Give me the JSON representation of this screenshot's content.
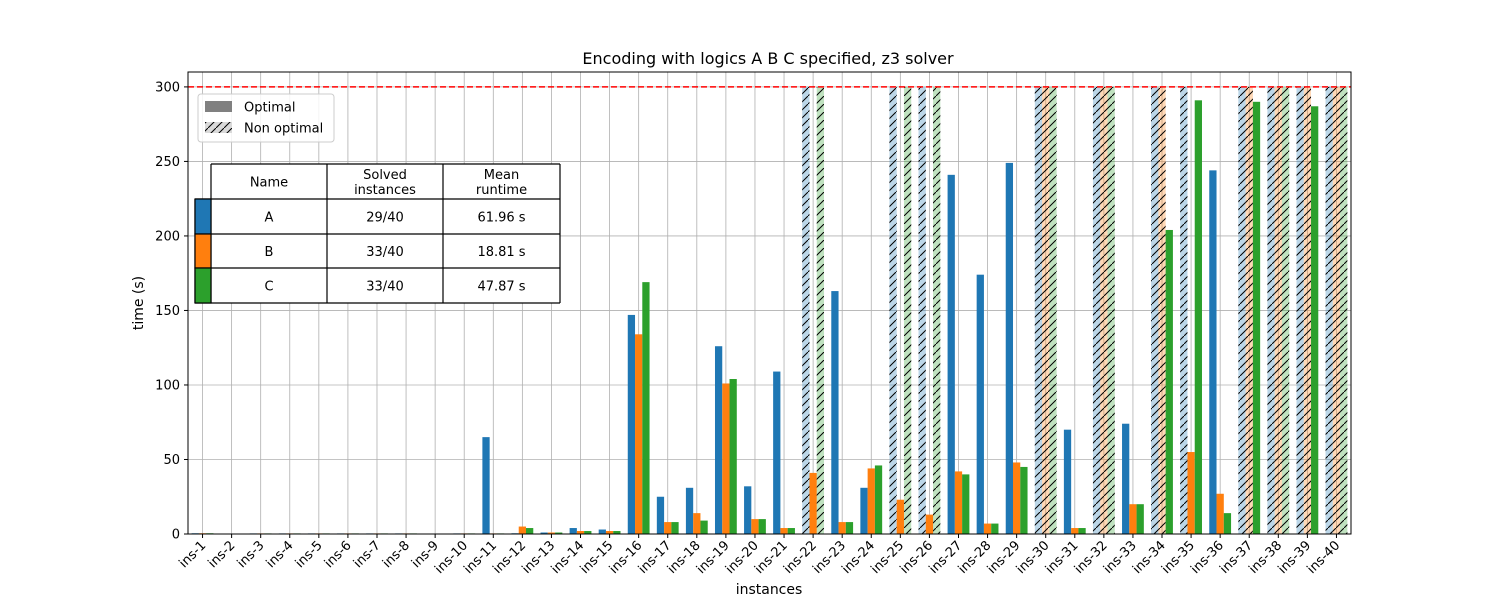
{
  "chart_data": {
    "type": "bar",
    "title": "Encoding with logics A B C specified, z3 solver",
    "xlabel": "instances",
    "ylabel": "time (s)",
    "ylim": [
      0,
      310
    ],
    "yticks": [
      0,
      50,
      100,
      150,
      200,
      250,
      300
    ],
    "timeout_line": 300,
    "timeout_color": "#ff0000",
    "grid": true,
    "categories": [
      "ins-1",
      "ins-2",
      "ins-3",
      "ins-4",
      "ins-5",
      "ins-6",
      "ins-7",
      "ins-8",
      "ins-9",
      "ins-10",
      "ins-11",
      "ins-12",
      "ins-13",
      "ins-14",
      "ins-15",
      "ins-16",
      "ins-17",
      "ins-18",
      "ins-19",
      "ins-20",
      "ins-21",
      "ins-22",
      "ins-23",
      "ins-24",
      "ins-25",
      "ins-26",
      "ins-27",
      "ins-28",
      "ins-29",
      "ins-30",
      "ins-31",
      "ins-32",
      "ins-33",
      "ins-34",
      "ins-35",
      "ins-36",
      "ins-37",
      "ins-38",
      "ins-39",
      "ins-40"
    ],
    "series": [
      {
        "name": "A",
        "color": "#1f77b4",
        "values": [
          0.5,
          0.3,
          0.4,
          0.4,
          0.4,
          0.4,
          0.4,
          0.4,
          0.3,
          0.4,
          65,
          0.5,
          1,
          4,
          3,
          147,
          25,
          31,
          126,
          32,
          109,
          300,
          163,
          31,
          300,
          300,
          241,
          174,
          249,
          300,
          70,
          300,
          74,
          300,
          300,
          244,
          300,
          300,
          300,
          300
        ],
        "optimal": [
          1,
          1,
          1,
          1,
          1,
          1,
          1,
          1,
          1,
          1,
          1,
          1,
          1,
          1,
          1,
          1,
          1,
          1,
          1,
          1,
          1,
          0,
          1,
          1,
          0,
          0,
          1,
          1,
          1,
          0,
          1,
          0,
          1,
          0,
          0,
          1,
          0,
          0,
          0,
          0
        ]
      },
      {
        "name": "B",
        "color": "#ff7f0e",
        "values": [
          0.5,
          0.3,
          0.4,
          0.4,
          0.4,
          0.4,
          0.4,
          0.4,
          0.3,
          0.4,
          0.4,
          5,
          1,
          2,
          2,
          134,
          8,
          14,
          101,
          10,
          4,
          41,
          8,
          44,
          23,
          13,
          42,
          7,
          48,
          300,
          4,
          300,
          20,
          300,
          55,
          27,
          300,
          300,
          300,
          300
        ],
        "optimal": [
          1,
          1,
          1,
          1,
          1,
          1,
          1,
          1,
          1,
          1,
          1,
          1,
          1,
          1,
          1,
          1,
          1,
          1,
          1,
          1,
          1,
          1,
          1,
          1,
          1,
          1,
          1,
          1,
          1,
          0,
          1,
          0,
          1,
          0,
          1,
          1,
          0,
          0,
          0,
          0
        ]
      },
      {
        "name": "C",
        "color": "#2ca02c",
        "values": [
          0.5,
          0.3,
          0.4,
          0.4,
          0.4,
          0.4,
          0.4,
          0.4,
          0.3,
          0.4,
          0.4,
          4,
          1,
          2,
          2,
          169,
          8,
          9,
          104,
          10,
          4,
          300,
          8,
          46,
          300,
          300,
          40,
          7,
          45,
          300,
          4,
          300,
          20,
          204,
          291,
          14,
          290,
          300,
          287,
          300
        ],
        "optimal": [
          1,
          1,
          1,
          1,
          1,
          1,
          1,
          1,
          1,
          1,
          1,
          1,
          1,
          1,
          1,
          1,
          1,
          1,
          1,
          1,
          1,
          0,
          1,
          1,
          0,
          0,
          1,
          1,
          1,
          0,
          1,
          0,
          1,
          1,
          1,
          1,
          1,
          0,
          1,
          0
        ]
      }
    ],
    "legend": {
      "placement": "top-left",
      "entries": [
        {
          "label": "Optimal",
          "style": "solid",
          "color": "#808080"
        },
        {
          "label": "Non optimal",
          "style": "hatched",
          "color": "#d9d9d9"
        }
      ]
    },
    "table": {
      "headers": [
        "Name",
        "Solved\ninstances",
        "Mean\nruntime"
      ],
      "rows": [
        {
          "name": "A",
          "solved": "29/40",
          "mean": "61.96 s",
          "color": "#1f77b4"
        },
        {
          "name": "B",
          "solved": "33/40",
          "mean": "18.81 s",
          "color": "#ff7f0e"
        },
        {
          "name": "C",
          "solved": "33/40",
          "mean": "47.87 s",
          "color": "#2ca02c"
        }
      ]
    }
  }
}
